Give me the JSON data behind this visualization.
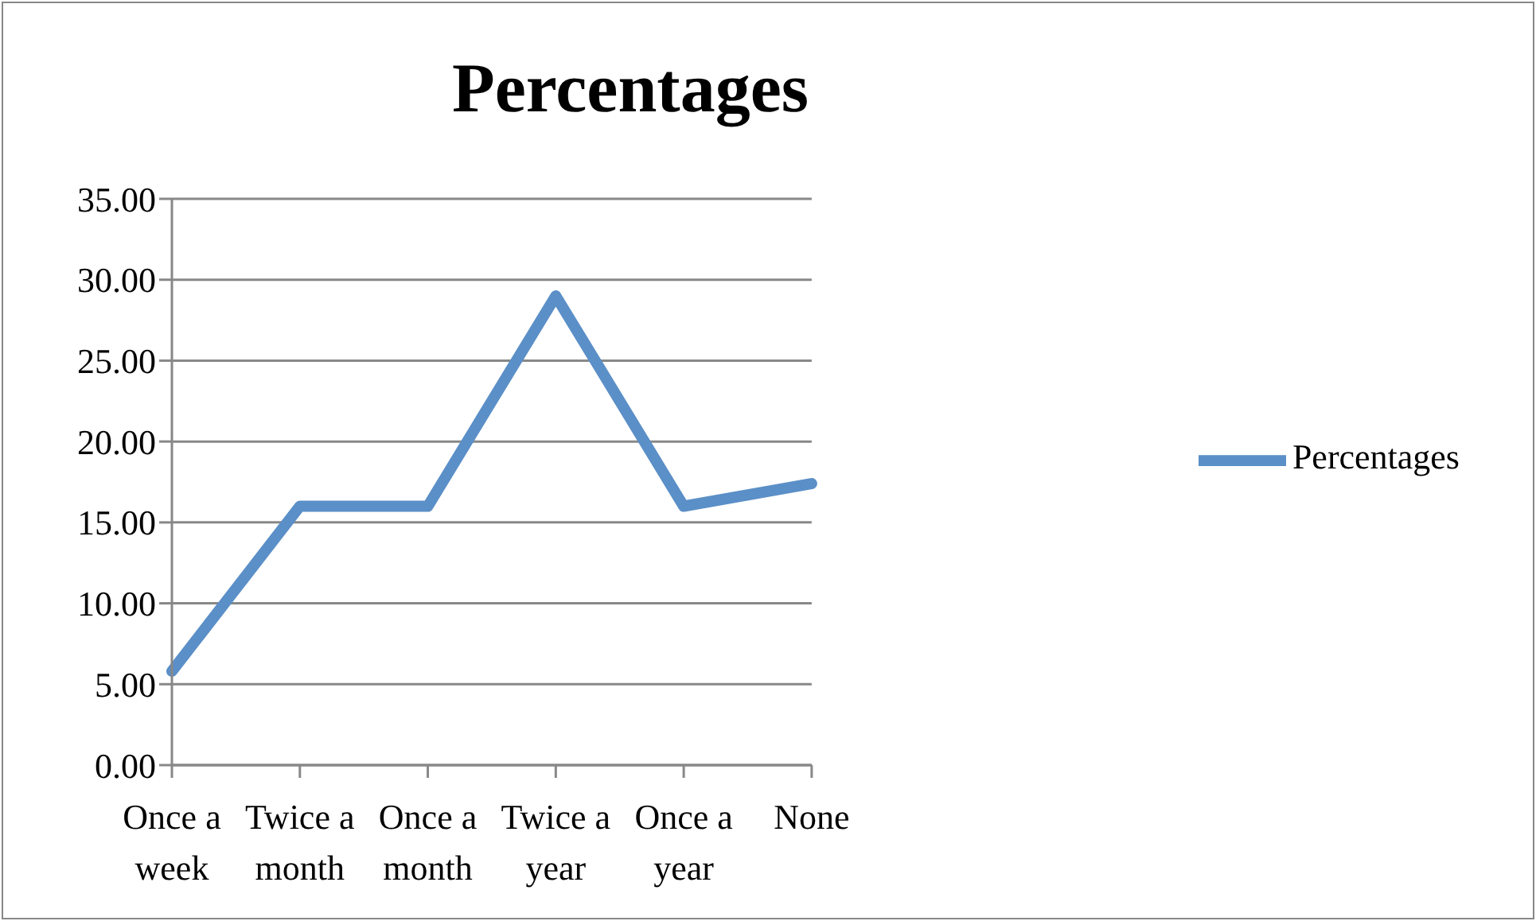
{
  "chart_data": {
    "type": "line",
    "title": "Percentages",
    "categories": [
      "Once a week",
      "Twice a month",
      "Once a month",
      "Twice a year",
      "Once a year",
      "None"
    ],
    "series": [
      {
        "name": "Percentages",
        "color": "#5b8fc7",
        "values": [
          5.8,
          16.0,
          16.0,
          29.0,
          16.0,
          17.4
        ]
      }
    ],
    "ylim": [
      0,
      35
    ],
    "yticks": [
      {
        "value": 0,
        "label": "0.00"
      },
      {
        "value": 5,
        "label": "5.00"
      },
      {
        "value": 10,
        "label": "10.00"
      },
      {
        "value": 15,
        "label": "15.00"
      },
      {
        "value": 20,
        "label": "20.00"
      },
      {
        "value": 25,
        "label": "25.00"
      },
      {
        "value": 30,
        "label": "30.00"
      },
      {
        "value": 35,
        "label": "35.00"
      }
    ],
    "grid": "y",
    "legend": "right"
  }
}
